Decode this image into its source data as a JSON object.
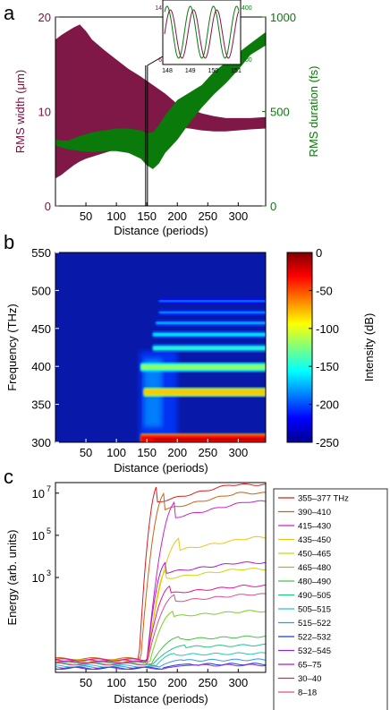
{
  "chart_data": [
    {
      "panel": "a",
      "type": "area",
      "xlabel": "Distance (periods)",
      "ylabel_left": "RMS width (μm)",
      "ylabel_right": "RMS duration (fs)",
      "xlim": [
        0,
        345
      ],
      "ylim_left": [
        0,
        20
      ],
      "ylim_right": [
        0,
        1000
      ],
      "xticks": [
        50,
        100,
        150,
        200,
        250,
        300
      ],
      "yticks_left": [
        0,
        10,
        20
      ],
      "yticks_right": [
        0,
        500,
        1000
      ],
      "left_color": "#7a1040",
      "right_color": "#0a7a0a",
      "series": [
        {
          "axis": "left",
          "color": "#7f1747",
          "x": [
            0,
            10,
            20,
            30,
            40,
            50,
            60,
            80,
            100,
            120,
            140,
            160,
            180,
            200,
            220,
            240,
            260,
            280,
            300,
            320,
            345
          ],
          "upper": [
            17.6,
            18.1,
            18.5,
            18.9,
            19.2,
            18.5,
            17.6,
            16.5,
            15.5,
            14.5,
            13.7,
            12.8,
            11.9,
            10.8,
            10.3,
            9.8,
            9.5,
            9.3,
            9.3,
            9.3,
            9.4
          ],
          "lower": [
            2.9,
            3.3,
            3.8,
            4.3,
            4.7,
            5.0,
            5.2,
            5.6,
            6.0,
            6.5,
            6.9,
            7.5,
            8.0,
            8.3,
            8.2,
            8.0,
            7.9,
            7.9,
            8.0,
            8.1,
            8.2
          ]
        },
        {
          "axis": "right",
          "color": "#0a7a0a",
          "x": [
            0,
            20,
            40,
            60,
            80,
            100,
            120,
            140,
            150,
            160,
            170,
            180,
            200,
            220,
            240,
            260,
            280,
            300,
            320,
            345
          ],
          "upper": [
            350,
            345,
            370,
            390,
            400,
            410,
            410,
            400,
            385,
            390,
            430,
            480,
            560,
            600,
            640,
            710,
            760,
            810,
            860,
            920
          ],
          "lower": [
            320,
            300,
            290,
            285,
            290,
            290,
            280,
            250,
            215,
            195,
            225,
            280,
            350,
            440,
            520,
            590,
            650,
            720,
            800,
            850
          ]
        }
      ],
      "inset": {
        "x_range": [
          148,
          151
        ],
        "xticks": [
          "148",
          "149",
          "150",
          "151"
        ],
        "y_left": [
          "14",
          "6"
        ],
        "y_right": [
          "400",
          "100"
        ],
        "colors": [
          "#7f1747",
          "#0a7a0a"
        ]
      }
    },
    {
      "panel": "b",
      "type": "heatmap",
      "xlabel": "Distance (periods)",
      "ylabel": "Frequency (THz)",
      "colorbar_label": "Intensity (dB)",
      "xlim": [
        0,
        345
      ],
      "ylim": [
        300,
        550
      ],
      "xticks": [
        50,
        100,
        150,
        200,
        250,
        300
      ],
      "yticks": [
        300,
        350,
        400,
        450,
        500,
        550
      ],
      "cbar_ticks": [
        0,
        -50,
        -100,
        -150,
        -200,
        -250
      ],
      "clim": [
        -250,
        0
      ],
      "bands": [
        {
          "f": 304,
          "onset": 140,
          "level": -30,
          "width": 5
        },
        {
          "f": 366,
          "onset": 145,
          "level": -80,
          "width": 3.5
        },
        {
          "f": 399,
          "onset": 140,
          "level": -120,
          "width": 3.5
        },
        {
          "f": 424,
          "onset": 160,
          "level": -145,
          "width": 2.5
        },
        {
          "f": 442,
          "onset": 160,
          "level": -155,
          "width": 2
        },
        {
          "f": 457,
          "onset": 165,
          "level": -165,
          "width": 1.5
        },
        {
          "f": 471,
          "onset": 170,
          "level": -170,
          "width": 1.2
        },
        {
          "f": 486,
          "onset": 170,
          "level": -175,
          "width": 1.2
        }
      ]
    },
    {
      "panel": "c",
      "type": "line",
      "yscale": "log",
      "xlabel": "Distance (periods)",
      "ylabel": "Energy (arb. units)",
      "xlim": [
        0,
        345
      ],
      "ylim_log10": [
        -1.5,
        7.5
      ],
      "xticks": [
        50,
        100,
        150,
        200,
        250,
        300
      ],
      "yticks": [
        {
          "exp": "3",
          "v": 3
        },
        {
          "exp": "5",
          "v": 5
        },
        {
          "exp": "7",
          "v": 7
        }
      ],
      "legend_position": "right",
      "series": [
        {
          "name": "355–377 THz",
          "color": "#d81e1e",
          "base": -0.9,
          "rise": 137,
          "end": 7.4
        },
        {
          "name": "390–410",
          "color": "#c86414",
          "base": -0.85,
          "rise": 140,
          "end": 7.0
        },
        {
          "name": "415–430",
          "color": "#cc22cc",
          "base": -0.95,
          "rise": 150,
          "end": 6.6
        },
        {
          "name": "435–450",
          "color": "#e8c814",
          "base": -0.95,
          "rise": 150,
          "end": 4.9
        },
        {
          "name": "450–465",
          "color": "#d4d400",
          "base": -1.0,
          "rise": 152,
          "end": 3.4
        },
        {
          "name": "465–480",
          "color": "#7ad01c",
          "base": -1.0,
          "rise": 155,
          "end": 1.4
        },
        {
          "name": "480–490",
          "color": "#44c444",
          "base": -1.05,
          "rise": 158,
          "end": 0.2
        },
        {
          "name": "490–505",
          "color": "#22c488",
          "base": -1.1,
          "rise": 160,
          "end": -0.2
        },
        {
          "name": "505–515",
          "color": "#22c4c4",
          "base": -1.2,
          "rise": 165,
          "end": -0.6
        },
        {
          "name": "515–522",
          "color": "#2c9ae0",
          "base": -1.25,
          "rise": 170,
          "end": -0.9
        },
        {
          "name": "522–532",
          "color": "#1c3cd4",
          "base": -1.3,
          "rise": 175,
          "end": -1.1
        },
        {
          "name": "532–545",
          "color": "#8a2cd4",
          "base": -1.3,
          "rise": 180,
          "end": -1.15
        },
        {
          "name": "65–75",
          "color": "#b418c8",
          "base": -1.0,
          "rise": 150,
          "end": 3.7
        },
        {
          "name": "30–40",
          "color": "#e01890",
          "base": -0.9,
          "rise": 150,
          "end": 2.6
        },
        {
          "name": "8–18",
          "color": "#d8508a",
          "base": -1.1,
          "rise": 150,
          "end": 2.2
        }
      ]
    }
  ],
  "panel_labels": [
    "a",
    "b",
    "c"
  ]
}
